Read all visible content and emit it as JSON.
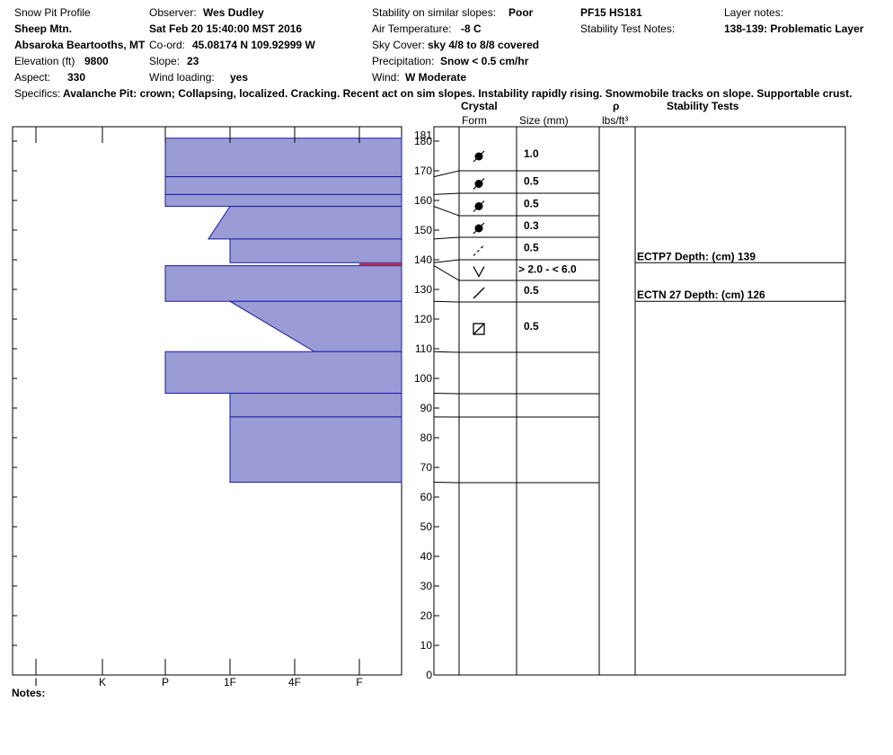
{
  "header": {
    "report_title": "Snow Pit Profile",
    "location_name": "Sheep Mtn.",
    "region": "Absaroka Beartooths, MT",
    "elevation_label": "Elevation (ft)",
    "elevation_value": "9800",
    "aspect_label": "Aspect:",
    "aspect_value": "330",
    "observer_label": "Observer:",
    "observer_value": "Wes Dudley",
    "datetime": "Sat Feb 20 15:40:00 MST 2016",
    "coord_label": "Co-ord:",
    "coord_value": "45.08174 N 109.92999 W",
    "slope_label": "Slope:",
    "slope_value": "23",
    "wind_loading_label": "Wind loading:",
    "wind_loading_value": "yes",
    "stability_label": "Stability on similar slopes:",
    "stability_value": "Poor",
    "air_temp_label": "Air Temperature:",
    "air_temp_value": "-8 C",
    "sky_label": "Sky Cover:",
    "sky_value": "sky 4/8 to 8/8 covered",
    "precip_label": "Precipitation:",
    "precip_value": "Snow < 0.5 cm/hr",
    "wind_label": "Wind:",
    "wind_value": "W Moderate",
    "pit_id": "PF15 HS181",
    "stability_notes_label": "Stability Test Notes:",
    "layer_notes_label": "Layer notes:",
    "layer_notes_value": "138-139: Problematic Layer",
    "specifics_label": "Specifics:",
    "specifics_value": "Avalanche Pit: crown; Collapsing, localized. Cracking. Recent act on sim slopes. Instability rapidly rising. Snowmobile tracks on slope. Supportable crust."
  },
  "table_headers": {
    "crystal": "Crystal",
    "form": "Form",
    "size": "Size (mm)",
    "rho": "ρ",
    "density_unit": "lbs/ft³",
    "stability_tests": "Stability Tests"
  },
  "notes_label": "Notes:",
  "colors": {
    "layer_fill": "#9b9bd6",
    "layer_stroke": "#1a1aa8",
    "problem_layer": "#e02020"
  },
  "chart_data": {
    "type": "snow_profile",
    "snow_depth_cm": 181,
    "y_axis": {
      "range": [
        0,
        181
      ],
      "ticks": [
        0,
        10,
        20,
        30,
        40,
        50,
        60,
        70,
        80,
        90,
        100,
        110,
        120,
        130,
        140,
        150,
        160,
        170,
        180,
        181
      ]
    },
    "hardness_scale": [
      "I",
      "K",
      "P",
      "1F",
      "4F",
      "F"
    ],
    "layers": [
      {
        "top": 181,
        "bottom": 168,
        "hardness_top": "P",
        "hardness_bottom": "P"
      },
      {
        "top": 168,
        "bottom": 162,
        "hardness_top": "P",
        "hardness_bottom": "P"
      },
      {
        "top": 162,
        "bottom": 158,
        "hardness_top": "P",
        "hardness_bottom": "P"
      },
      {
        "top": 158,
        "bottom": 147,
        "hardness_top": "1F",
        "hardness_bottom": "P-"
      },
      {
        "top": 147,
        "bottom": 139,
        "hardness_top": "1F",
        "hardness_bottom": "1F"
      },
      {
        "top": 138,
        "bottom": 126,
        "hardness_top": "P",
        "hardness_bottom": "P"
      },
      {
        "top": 126,
        "bottom": 109,
        "hardness_top": "1F",
        "hardness_bottom": "4F"
      },
      {
        "top": 109,
        "bottom": 95,
        "hardness_top": "P",
        "hardness_bottom": "P"
      },
      {
        "top": 95,
        "bottom": 87,
        "hardness_top": "1F",
        "hardness_bottom": "1F"
      },
      {
        "top": 87,
        "bottom": 65,
        "hardness_top": "1F",
        "hardness_bottom": "1F"
      }
    ],
    "problematic_layer": {
      "top": 139,
      "bottom": 138
    },
    "crystals": [
      {
        "form": "melt-freeze",
        "size": "1.0"
      },
      {
        "form": "melt-freeze",
        "size": "0.5"
      },
      {
        "form": "melt-freeze",
        "size": "0.5"
      },
      {
        "form": "melt-freeze",
        "size": "0.3"
      },
      {
        "form": "decomposing",
        "size": "0.5"
      },
      {
        "form": "depth-hoar",
        "size": "> 2.0 - < 6.0"
      },
      {
        "form": "precipitation-particle",
        "size": "0.5"
      },
      {
        "form": "faceted",
        "size": "0.5"
      }
    ],
    "stability_tests": [
      {
        "label": "ECTP7   Depth: (cm) 139",
        "depth": 139
      },
      {
        "label": "ECTN 27   Depth: (cm) 126",
        "depth": 126
      }
    ]
  }
}
